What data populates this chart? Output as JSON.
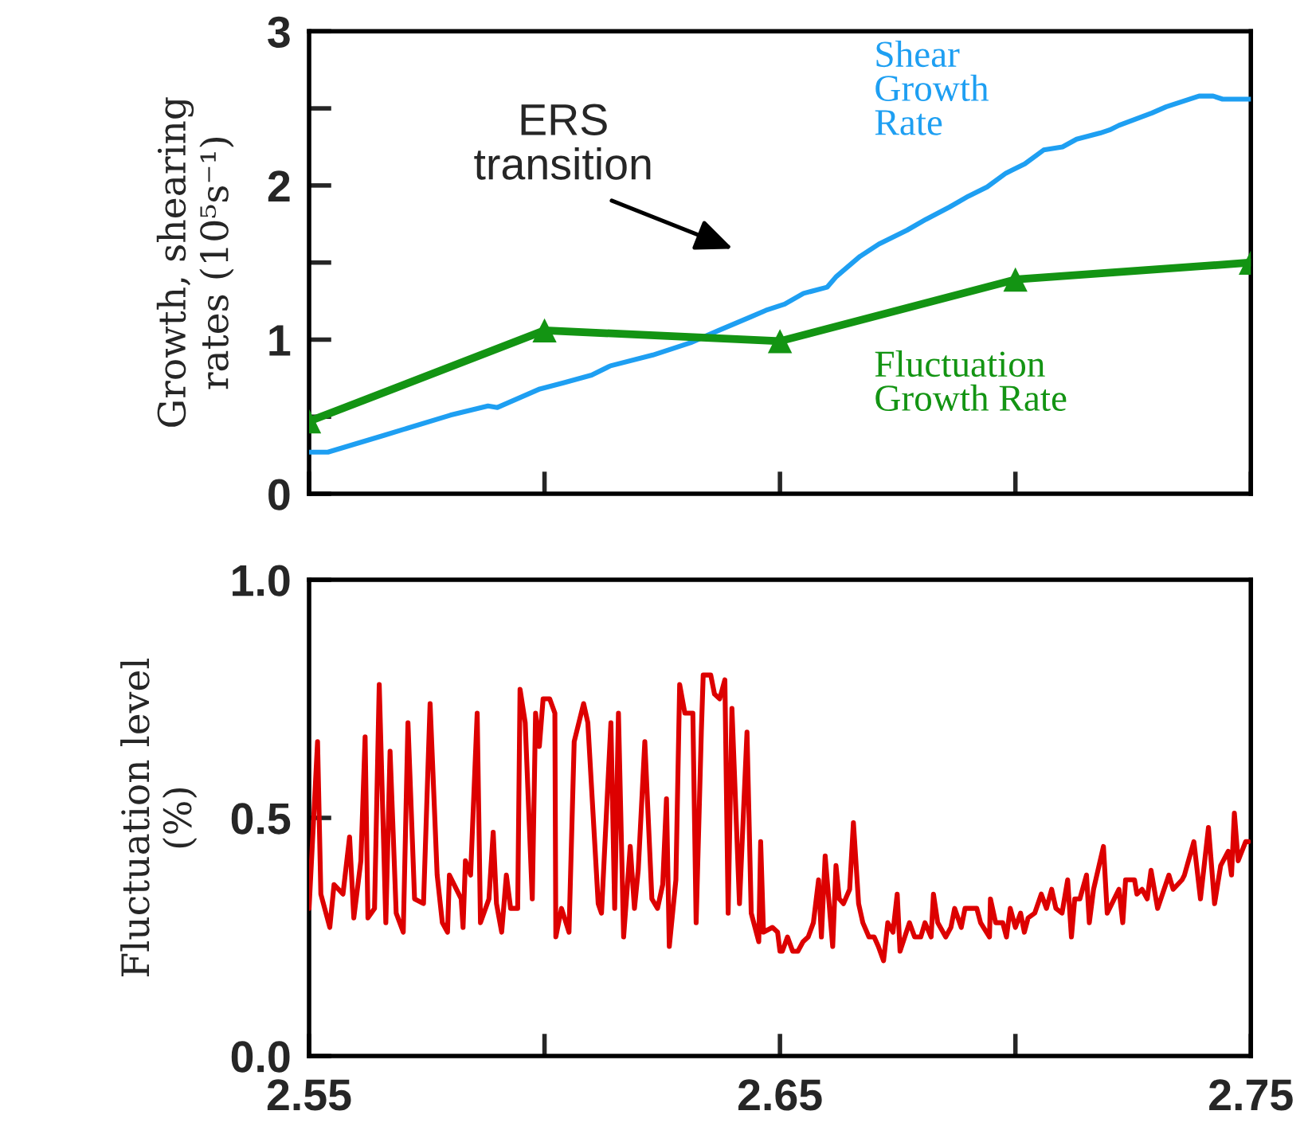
{
  "chart_data": [
    {
      "type": "line",
      "ylabel": "Growth, shearing\nrates (10⁵s⁻¹)",
      "xlim": [
        2.55,
        2.75
      ],
      "xticks": [
        {
          "value": 2.55,
          "label": null
        },
        {
          "value": 2.6,
          "label": null
        },
        {
          "value": 2.65,
          "label": null
        },
        {
          "value": 2.7,
          "label": null
        },
        {
          "value": 2.75,
          "label": null
        }
      ],
      "ylim": [
        0,
        3
      ],
      "yticks": [
        0,
        {
          "value": 0.5,
          "label": null
        },
        1,
        {
          "value": 1.5,
          "label": null
        },
        2,
        {
          "value": 2.5,
          "label": null
        },
        3
      ],
      "tick_labels": "y",
      "grid": false,
      "legend": false,
      "annotations": [
        "ERS\ntransition"
      ],
      "series": [
        {
          "name": "Shear\nGrowth\nRate",
          "color": "#1e9ff2",
          "marker": "none",
          "x": [
            2.55,
            2.554,
            2.566,
            2.58,
            2.588,
            2.59,
            2.596,
            2.599,
            2.604,
            2.61,
            2.614,
            2.623,
            2.631,
            2.637,
            2.644,
            2.647,
            2.651,
            2.655,
            2.66,
            2.662,
            2.667,
            2.671,
            2.677,
            2.681,
            2.686,
            2.69,
            2.694,
            2.698,
            2.702,
            2.706,
            2.71,
            2.713,
            2.718,
            2.72,
            2.722,
            2.729,
            2.732,
            2.739,
            2.742,
            2.744,
            2.75
          ],
          "values": [
            0.27,
            0.27,
            0.38,
            0.51,
            0.57,
            0.56,
            0.64,
            0.68,
            0.72,
            0.77,
            0.83,
            0.9,
            0.98,
            1.06,
            1.15,
            1.19,
            1.23,
            1.3,
            1.34,
            1.41,
            1.54,
            1.62,
            1.71,
            1.78,
            1.86,
            1.93,
            1.99,
            2.08,
            2.14,
            2.23,
            2.25,
            2.3,
            2.34,
            2.36,
            2.39,
            2.47,
            2.51,
            2.58,
            2.58,
            2.56,
            2.56
          ]
        },
        {
          "name": "Fluctuation\nGrowth Rate",
          "color": "#139413",
          "marker": "triangle",
          "x": [
            2.55,
            2.6,
            2.65,
            2.7,
            2.75
          ],
          "values": [
            0.47,
            1.06,
            0.99,
            1.39,
            1.5
          ]
        }
      ]
    },
    {
      "type": "line",
      "ylabel": "Fluctuation level\n(%)",
      "xlim": [
        2.55,
        2.75
      ],
      "xticks": [
        2.55,
        {
          "value": 2.6,
          "label": null
        },
        2.65,
        {
          "value": 2.7,
          "label": null
        },
        2.75
      ],
      "ylim": [
        0,
        1
      ],
      "yticks": [
        {
          "value": 0,
          "label": "0.0"
        },
        {
          "value": 0.5,
          "label": "0.5"
        },
        {
          "value": 1,
          "label": "1.0"
        }
      ],
      "grid": false,
      "legend": false,
      "series": [
        {
          "color": "#dd0000",
          "marker": "none",
          "x": [
            2.55,
            2.5518,
            2.5525,
            2.5544,
            2.5553,
            2.5572,
            2.5586,
            2.5595,
            2.561,
            2.5619,
            2.5625,
            2.5639,
            2.5649,
            2.5663,
            2.5672,
            2.5685,
            2.57,
            2.571,
            2.5724,
            2.5743,
            2.5757,
            2.5772,
            2.5783,
            2.5794,
            2.5798,
            2.5823,
            2.5827,
            2.5832,
            2.5843,
            2.5857,
            2.5864,
            2.5882,
            2.5891,
            2.5898,
            2.5909,
            2.5919,
            2.5928,
            2.5943,
            2.5948,
            2.5959,
            2.5974,
            2.5981,
            2.5989,
            2.5997,
            2.6011,
            2.6022,
            2.6024,
            2.6036,
            2.6052,
            2.6063,
            2.6083,
            2.6092,
            2.6114,
            2.6121,
            2.6141,
            2.6149,
            2.6157,
            2.6168,
            2.6182,
            2.6191,
            2.6199,
            2.6213,
            2.6228,
            2.624,
            2.6251,
            2.6259,
            2.6265,
            2.6279,
            2.6287,
            2.6298,
            2.6315,
            2.6322,
            2.6333,
            2.6337,
            2.6353,
            2.6361,
            2.6372,
            2.6383,
            2.639,
            2.6398,
            2.6414,
            2.643,
            2.6439,
            2.6455,
            2.6459,
            2.6465,
            2.6484,
            2.6495,
            2.65,
            2.6505,
            2.6516,
            2.6527,
            2.6538,
            2.6549,
            2.656,
            2.6571,
            2.6582,
            2.6588,
            2.6596,
            2.6612,
            2.6619,
            2.6626,
            2.6635,
            2.6648,
            2.6656,
            2.6667,
            2.6676,
            2.6689,
            2.67,
            2.6709,
            2.672,
            2.6729,
            2.674,
            2.6749,
            2.6755,
            2.6775,
            2.6786,
            2.6799,
            2.6808,
            2.6821,
            2.6826,
            2.6835,
            2.6852,
            2.6863,
            2.6871,
            2.6885,
            2.6893,
            2.6918,
            2.6926,
            2.6945,
            2.6947,
            2.6958,
            2.6973,
            2.6981,
            2.6989,
            2.7,
            2.7011,
            2.7019,
            2.7027,
            2.7041,
            2.7055,
            2.7066,
            2.7077,
            2.7086,
            2.7099,
            2.7111,
            2.7119,
            2.7126,
            2.7137,
            2.7151,
            2.7157,
            2.7166,
            2.7187,
            2.7195,
            2.722,
            2.7228,
            2.7234,
            2.7253,
            2.7258,
            2.7269,
            2.728,
            2.7288,
            2.7302,
            2.7326,
            2.7335,
            2.7354,
            2.7359,
            2.7379,
            2.7393,
            2.741,
            2.7423,
            2.7436,
            2.7452,
            2.7459,
            2.7465,
            2.7473,
            2.7489,
            2.7495
          ],
          "values": [
            0.31,
            0.66,
            0.34,
            0.27,
            0.36,
            0.34,
            0.46,
            0.29,
            0.41,
            0.67,
            0.29,
            0.31,
            0.78,
            0.28,
            0.64,
            0.3,
            0.26,
            0.7,
            0.33,
            0.32,
            0.74,
            0.38,
            0.28,
            0.26,
            0.38,
            0.33,
            0.27,
            0.41,
            0.38,
            0.72,
            0.28,
            0.33,
            0.47,
            0.32,
            0.26,
            0.38,
            0.31,
            0.31,
            0.77,
            0.7,
            0.33,
            0.72,
            0.65,
            0.75,
            0.75,
            0.72,
            0.25,
            0.31,
            0.26,
            0.66,
            0.74,
            0.7,
            0.32,
            0.3,
            0.7,
            0.31,
            0.72,
            0.25,
            0.44,
            0.31,
            0.39,
            0.66,
            0.33,
            0.31,
            0.36,
            0.54,
            0.23,
            0.37,
            0.78,
            0.72,
            0.72,
            0.28,
            0.68,
            0.8,
            0.8,
            0.76,
            0.75,
            0.79,
            0.3,
            0.73,
            0.32,
            0.68,
            0.3,
            0.24,
            0.45,
            0.26,
            0.27,
            0.26,
            0.22,
            0.22,
            0.25,
            0.22,
            0.22,
            0.24,
            0.25,
            0.28,
            0.37,
            0.25,
            0.42,
            0.23,
            0.4,
            0.33,
            0.32,
            0.35,
            0.49,
            0.32,
            0.28,
            0.25,
            0.25,
            0.23,
            0.2,
            0.28,
            0.26,
            0.34,
            0.22,
            0.28,
            0.25,
            0.25,
            0.28,
            0.25,
            0.34,
            0.28,
            0.25,
            0.27,
            0.31,
            0.27,
            0.31,
            0.31,
            0.28,
            0.25,
            0.33,
            0.28,
            0.28,
            0.25,
            0.31,
            0.27,
            0.3,
            0.26,
            0.29,
            0.3,
            0.34,
            0.31,
            0.35,
            0.31,
            0.3,
            0.37,
            0.25,
            0.33,
            0.33,
            0.38,
            0.28,
            0.35,
            0.44,
            0.3,
            0.35,
            0.28,
            0.37,
            0.37,
            0.34,
            0.35,
            0.33,
            0.39,
            0.31,
            0.38,
            0.35,
            0.37,
            0.38,
            0.45,
            0.33,
            0.48,
            0.32,
            0.4,
            0.43,
            0.38,
            0.51,
            0.41,
            0.45,
            0.45
          ]
        }
      ]
    }
  ]
}
